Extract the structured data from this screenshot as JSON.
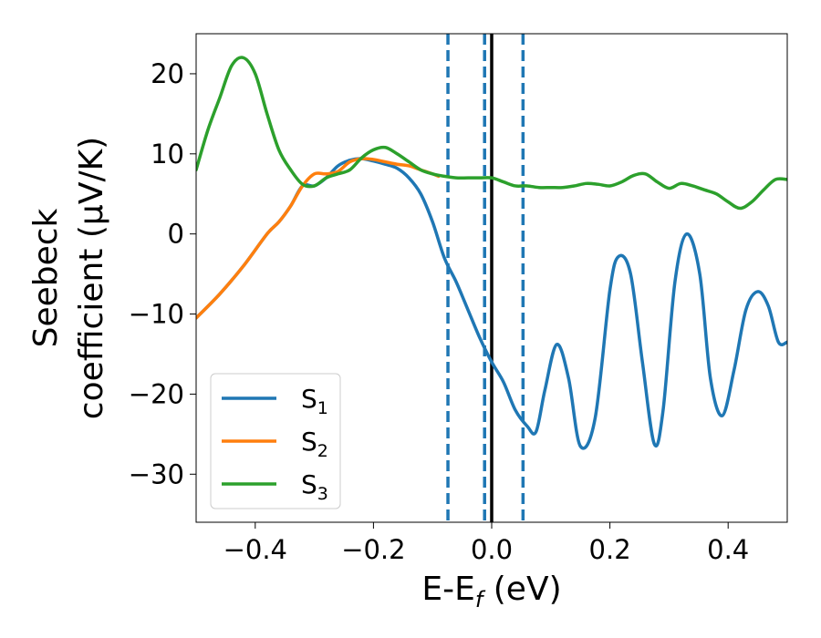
{
  "chart_data": {
    "type": "line",
    "xlabel": "E-E",
    "xlabel_sub": "f",
    "xlabel_unit": " (eV)",
    "ylabel_line1": "Seebeck",
    "ylabel_line2": "coefficient  (μV/K)",
    "xlim": [
      -0.5,
      0.5
    ],
    "ylim": [
      -36,
      25
    ],
    "xticks": [
      -0.4,
      -0.2,
      0.0,
      0.2,
      0.4
    ],
    "xtick_labels": [
      "−0.4",
      "−0.2",
      "0.0",
      "0.2",
      "0.4"
    ],
    "yticks": [
      20,
      10,
      0,
      -10,
      -20,
      -30
    ],
    "ytick_labels": [
      "20",
      "10",
      "0",
      "−10",
      "−20",
      "−30"
    ],
    "legend_position": "lower-left",
    "vertical_lines": [
      {
        "x": -0.074,
        "style": "dashed",
        "color": "#1f77b4"
      },
      {
        "x": -0.012,
        "style": "dashed",
        "color": "#1f77b4"
      },
      {
        "x": 0.0,
        "style": "solid",
        "color": "#000000"
      },
      {
        "x": 0.053,
        "style": "dashed",
        "color": "#1f77b4"
      }
    ],
    "series": [
      {
        "name": "S",
        "sub": "1",
        "color": "#1f77b4",
        "x": [
          -0.5,
          -0.46,
          -0.42,
          -0.38,
          -0.36,
          -0.34,
          -0.32,
          -0.3,
          -0.28,
          -0.26,
          -0.24,
          -0.22,
          -0.2,
          -0.18,
          -0.16,
          -0.14,
          -0.12,
          -0.1,
          -0.08,
          -0.06,
          -0.04,
          -0.02,
          0.0,
          0.02,
          0.04,
          0.06,
          0.075,
          0.09,
          0.11,
          0.13,
          0.15,
          0.175,
          0.2,
          0.215,
          0.235,
          0.255,
          0.275,
          0.29,
          0.31,
          0.33,
          0.352,
          0.37,
          0.39,
          0.41,
          0.43,
          0.45,
          0.468,
          0.485,
          0.5
        ],
        "y": [
          -10.5,
          -7.5,
          -4,
          0,
          1.5,
          3.5,
          6,
          6,
          7,
          8.5,
          9.2,
          9.4,
          9.1,
          8.7,
          8.2,
          7,
          5,
          1.5,
          -3,
          -6,
          -9.5,
          -13,
          -16,
          -18.5,
          -22,
          -24,
          -24.7,
          -19.5,
          -13.8,
          -18,
          -26.5,
          -23,
          -7,
          -2.8,
          -5,
          -16,
          -26.2,
          -22,
          -6,
          0,
          -5,
          -18,
          -22.7,
          -17,
          -9.5,
          -7.2,
          -9,
          -13.5,
          -13.5
        ]
      },
      {
        "name": "S",
        "sub": "2",
        "color": "#ff7f0e",
        "x": [
          -0.5,
          -0.46,
          -0.42,
          -0.38,
          -0.36,
          -0.34,
          -0.32,
          -0.3,
          -0.28,
          -0.26,
          -0.24,
          -0.22,
          -0.2,
          -0.18,
          -0.16,
          -0.14,
          -0.12,
          -0.1,
          -0.09
        ],
        "y": [
          -10.5,
          -7.5,
          -4,
          0,
          1.5,
          3.5,
          6,
          7.5,
          7.5,
          7.8,
          9,
          9.4,
          9.3,
          9,
          8.7,
          8.5,
          8,
          7.5,
          7.2
        ]
      },
      {
        "name": "S",
        "sub": "3",
        "color": "#2ca02c",
        "x": [
          -0.5,
          -0.48,
          -0.46,
          -0.44,
          -0.42,
          -0.4,
          -0.38,
          -0.36,
          -0.34,
          -0.32,
          -0.3,
          -0.28,
          -0.26,
          -0.24,
          -0.22,
          -0.2,
          -0.18,
          -0.16,
          -0.14,
          -0.12,
          -0.1,
          -0.08,
          -0.06,
          -0.04,
          -0.02,
          0.0,
          0.02,
          0.04,
          0.06,
          0.08,
          0.1,
          0.12,
          0.14,
          0.16,
          0.18,
          0.2,
          0.22,
          0.24,
          0.26,
          0.28,
          0.3,
          0.32,
          0.34,
          0.36,
          0.38,
          0.4,
          0.42,
          0.44,
          0.46,
          0.48,
          0.5
        ],
        "y": [
          8,
          13,
          17,
          21,
          22,
          20,
          15,
          10.5,
          8,
          6.2,
          6,
          7,
          7.5,
          8,
          9.5,
          10.5,
          10.8,
          10,
          9,
          8,
          7.5,
          7.2,
          7,
          7,
          7,
          7,
          6.5,
          6,
          6,
          5.8,
          5.8,
          5.8,
          6,
          6.3,
          6.2,
          6,
          6.5,
          7.3,
          7.5,
          6.5,
          5.7,
          6.3,
          6,
          5.5,
          5,
          4,
          3.2,
          4,
          5.5,
          6.8,
          6.8
        ]
      }
    ]
  }
}
